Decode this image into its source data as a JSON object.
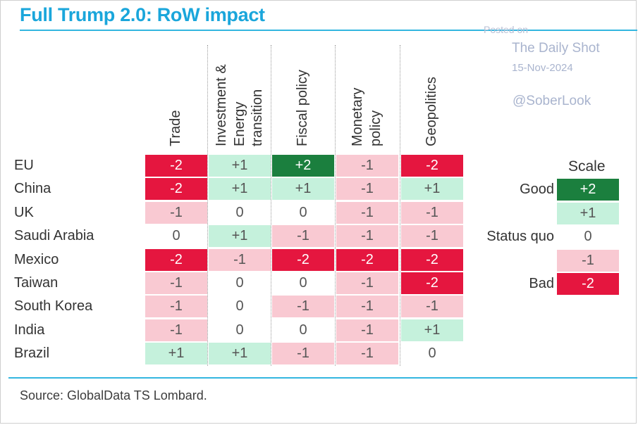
{
  "title": "Full Trump 2.0: RoW impact",
  "source": "Source: GlobalData TS Lombard.",
  "watermark": {
    "posted": "Posted on",
    "site": "The Daily Shot",
    "date": "15-Nov-2024",
    "handle": "@SoberLook"
  },
  "colors": {
    "plus2": "#1b7f3e",
    "plus1": "#c5f1dc",
    "zero": "#ffffff",
    "minus1": "#f9c9d2",
    "minus2": "#e5163f"
  },
  "chart_data": {
    "type": "heatmap",
    "columns": [
      [
        "Trade"
      ],
      [
        "Investment &",
        "Energy",
        "transition"
      ],
      [
        "Fiscal policy"
      ],
      [
        "Monetary",
        "policy"
      ],
      [
        "Geopolitics"
      ]
    ],
    "rows": [
      "EU",
      "China",
      "UK",
      "Saudi Arabia",
      "Mexico",
      "Taiwan",
      "South Korea",
      "India",
      "Brazil"
    ],
    "values": [
      [
        -2,
        1,
        2,
        -1,
        -2
      ],
      [
        -2,
        1,
        1,
        -1,
        1
      ],
      [
        -1,
        0,
        0,
        -1,
        -1
      ],
      [
        0,
        1,
        -1,
        -1,
        -1
      ],
      [
        -2,
        -1,
        -2,
        -2,
        -2
      ],
      [
        -1,
        0,
        0,
        -1,
        -2
      ],
      [
        -1,
        0,
        -1,
        -1,
        -1
      ],
      [
        -1,
        0,
        0,
        -1,
        1
      ],
      [
        1,
        1,
        -1,
        -1,
        0
      ]
    ],
    "scale": {
      "title": "Scale",
      "levels": [
        {
          "value": 2,
          "label": "Good"
        },
        {
          "value": 1,
          "label": ""
        },
        {
          "value": 0,
          "label": "Status quo"
        },
        {
          "value": -1,
          "label": ""
        },
        {
          "value": -2,
          "label": "Bad"
        }
      ]
    }
  }
}
